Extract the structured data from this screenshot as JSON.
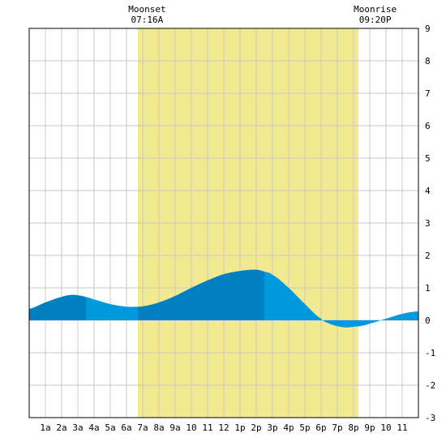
{
  "chart_data": {
    "type": "area",
    "title": "",
    "xlabel": "",
    "ylabel": "",
    "xlim": [
      0,
      24
    ],
    "ylim": [
      -3,
      9
    ],
    "y_ticks": [
      -3,
      -2,
      -1,
      0,
      1,
      2,
      3,
      4,
      5,
      6,
      7,
      8,
      9
    ],
    "x_tick_labels": [
      "1a",
      "2a",
      "3a",
      "4a",
      "5a",
      "6a",
      "7a",
      "8a",
      "9a",
      "10",
      "11",
      "12",
      "1p",
      "2p",
      "3p",
      "4p",
      "5p",
      "6p",
      "7p",
      "8p",
      "9p",
      "10",
      "11"
    ],
    "grid": true,
    "daylight": {
      "start_hour": 6.7,
      "end_hour": 20.3,
      "color": "#f2ea90"
    },
    "annotations": [
      {
        "label": "Moonset",
        "time": "07:16A",
        "hour": 7.27
      },
      {
        "label": "Moonrise",
        "time": "09:20P",
        "hour": 21.33
      }
    ],
    "series": [
      {
        "x": [
          0,
          1,
          2,
          2.6,
          3,
          3.5,
          4,
          5,
          6,
          6.7,
          7,
          8,
          9,
          10,
          11,
          12,
          13,
          14,
          14.5,
          15,
          16,
          17,
          18,
          18.5,
          19,
          19.5,
          20,
          20.5,
          21,
          22,
          23,
          24
        ],
        "y": [
          0.35,
          0.55,
          0.72,
          0.78,
          0.77,
          0.72,
          0.64,
          0.5,
          0.42,
          0.42,
          0.43,
          0.55,
          0.75,
          1.0,
          1.23,
          1.42,
          1.52,
          1.56,
          1.5,
          1.4,
          1.0,
          0.5,
          0.05,
          -0.1,
          -0.18,
          -0.22,
          -0.2,
          -0.17,
          -0.1,
          0.05,
          0.2,
          0.28
        ]
      }
    ],
    "colors": {
      "light_fill": "#0099dd",
      "dark_fill": "#0080c0",
      "grid": "#c8c8c8",
      "border": "#000000"
    },
    "dark_bands": [
      [
        0,
        3.5
      ],
      [
        6.7,
        14.5
      ]
    ]
  }
}
